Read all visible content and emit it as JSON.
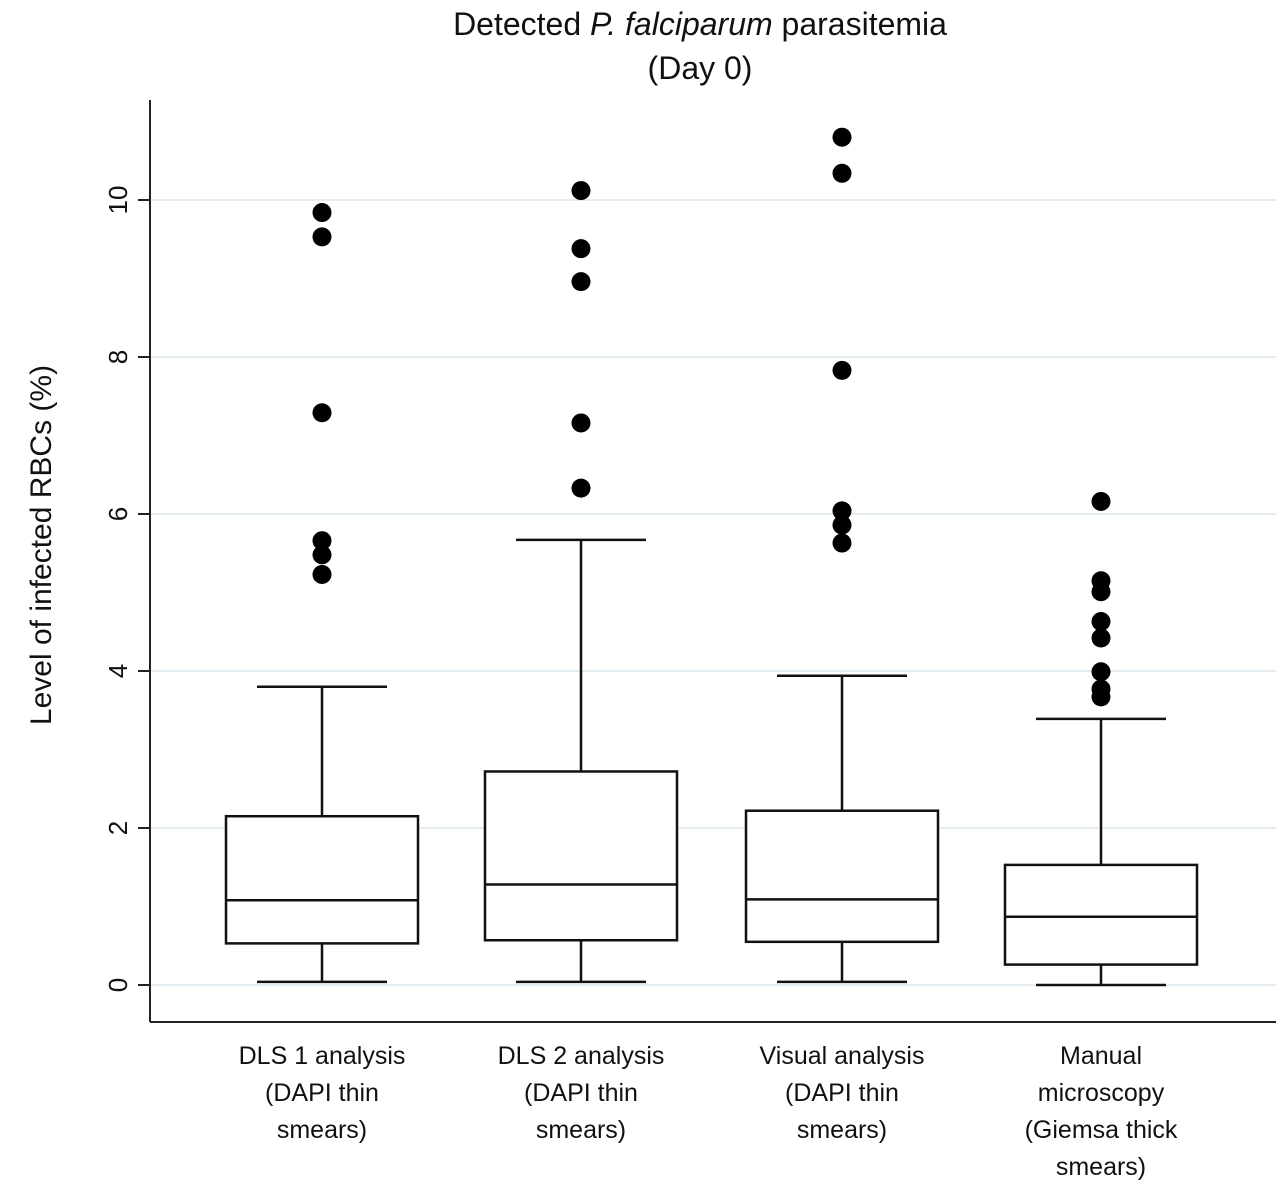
{
  "chart_data": {
    "type": "box",
    "title": {
      "prefix": "Detected ",
      "italic": "P. falciparum",
      "suffix": " parasitemia",
      "line2": "(Day 0)"
    },
    "ylabel": "Level of infected RBCs (%)",
    "ylim": [
      0,
      10.8
    ],
    "yticks": [
      "0",
      "2",
      "4",
      "6",
      "8",
      "10"
    ],
    "grid": true,
    "categories": [
      {
        "lines": [
          "DLS 1 analysis",
          "(DAPI thin",
          "smears)"
        ]
      },
      {
        "lines": [
          "DLS 2 analysis",
          "(DAPI thin",
          "smears)"
        ]
      },
      {
        "lines": [
          "Visual analysis",
          "(DAPI thin",
          "smears)"
        ]
      },
      {
        "lines": [
          "Manual",
          "microscopy",
          "(Giemsa thick",
          "smears)"
        ]
      }
    ],
    "boxes": [
      {
        "whisker_low": 0.04,
        "q1": 0.53,
        "median": 1.08,
        "q3": 2.15,
        "whisker_high": 3.8,
        "outliers": [
          5.23,
          5.48,
          5.66,
          7.29,
          9.53,
          9.84
        ]
      },
      {
        "whisker_low": 0.04,
        "q1": 0.57,
        "median": 1.28,
        "q3": 2.72,
        "whisker_high": 5.67,
        "outliers": [
          6.33,
          7.16,
          8.96,
          9.38,
          10.12
        ]
      },
      {
        "whisker_low": 0.04,
        "q1": 0.55,
        "median": 1.09,
        "q3": 2.22,
        "whisker_high": 3.94,
        "outliers": [
          5.63,
          5.86,
          6.04,
          7.83,
          10.34,
          10.8
        ]
      },
      {
        "whisker_low": 0.0,
        "q1": 0.26,
        "median": 0.87,
        "q3": 1.53,
        "whisker_high": 3.39,
        "outliers": [
          3.67,
          3.77,
          3.99,
          4.42,
          4.63,
          5.01,
          5.15,
          6.16
        ]
      }
    ]
  }
}
